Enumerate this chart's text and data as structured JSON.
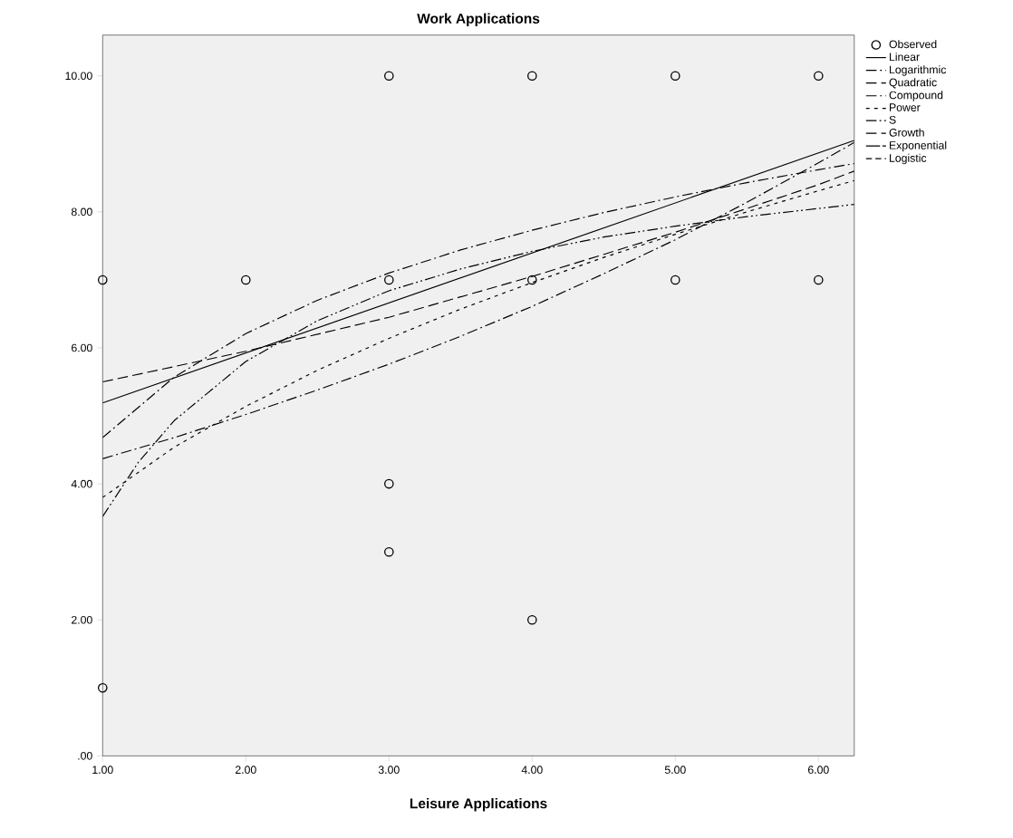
{
  "chart_data": {
    "type": "scatter",
    "title": "Work Applications",
    "xlabel": "Leisure Applications",
    "xlim": [
      1,
      6.25
    ],
    "ylim": [
      0,
      10.6
    ],
    "xticks": [
      {
        "value": 1,
        "label": "1.00"
      },
      {
        "value": 2,
        "label": "2.00"
      },
      {
        "value": 3,
        "label": "3.00"
      },
      {
        "value": 4,
        "label": "4.00"
      },
      {
        "value": 5,
        "label": "5.00"
      },
      {
        "value": 6,
        "label": "6.00"
      }
    ],
    "yticks": [
      {
        "value": 0,
        "label": ".00"
      },
      {
        "value": 2,
        "label": "2.00"
      },
      {
        "value": 4,
        "label": "4.00"
      },
      {
        "value": 6,
        "label": "6.00"
      },
      {
        "value": 8,
        "label": "8.00"
      },
      {
        "value": 10,
        "label": "10.00"
      }
    ],
    "grid": false,
    "legend": "right",
    "series": [
      {
        "name": "Observed",
        "type": "scatter",
        "marker": "circle",
        "color": "#000000",
        "x": [
          1,
          1,
          2,
          3,
          3,
          3,
          3,
          4,
          4,
          4,
          5,
          5,
          6,
          6
        ],
        "values": [
          7,
          1,
          7,
          10,
          7,
          4,
          3,
          10,
          7,
          2,
          10,
          7,
          10,
          7
        ]
      },
      {
        "name": "Linear",
        "type": "line",
        "line_style": "solid",
        "color": "#000000",
        "x": [
          1,
          6.25
        ],
        "values": [
          5.19,
          9.05
        ]
      },
      {
        "name": "Logarithmic",
        "type": "line",
        "line_style": "dashdotted",
        "color": "#000000",
        "x": [
          1,
          1.5,
          2,
          2.5,
          3,
          3.5,
          4,
          4.5,
          5,
          5.5,
          6,
          6.25
        ],
        "values": [
          4.68,
          5.57,
          6.21,
          6.7,
          7.1,
          7.44,
          7.73,
          7.99,
          8.22,
          8.43,
          8.62,
          8.71
        ]
      },
      {
        "name": "Quadratic",
        "type": "line",
        "line_style": "dashed",
        "color": "#000000",
        "x": [
          1,
          2,
          3,
          4,
          5,
          6,
          6.25
        ],
        "values": [
          5.5,
          5.95,
          6.45,
          7.05,
          7.7,
          8.4,
          8.6
        ]
      },
      {
        "name": "Compound",
        "type": "line",
        "line_style": "dashdotted",
        "color": "#000000",
        "x": [
          1,
          1.5,
          2,
          2.5,
          3,
          3.5,
          4,
          4.5,
          5,
          5.5,
          6,
          6.25
        ],
        "values": [
          4.37,
          4.68,
          5.02,
          5.38,
          5.76,
          6.17,
          6.61,
          7.09,
          7.59,
          8.14,
          8.72,
          9.02
        ]
      },
      {
        "name": "Power",
        "type": "line",
        "line_style": "dotted",
        "color": "#000000",
        "x": [
          1,
          1.5,
          2,
          2.5,
          3,
          3.5,
          4,
          4.5,
          5,
          5.5,
          6,
          6.25
        ],
        "values": [
          3.8,
          4.54,
          5.14,
          5.67,
          6.14,
          6.57,
          6.96,
          7.33,
          7.67,
          8.0,
          8.31,
          8.46
        ]
      },
      {
        "name": "S",
        "type": "line",
        "line_style": "dashdotdotted",
        "color": "#000000",
        "x": [
          1,
          1.25,
          1.5,
          2,
          2.5,
          3,
          3.5,
          4,
          4.5,
          5,
          5.5,
          6,
          6.25
        ],
        "values": [
          3.52,
          4.32,
          4.93,
          5.8,
          6.4,
          6.84,
          7.16,
          7.42,
          7.63,
          7.79,
          7.93,
          8.05,
          8.11
        ]
      },
      {
        "name": "Growth",
        "type": "line",
        "line_style": "dashed",
        "color": "#000000"
      },
      {
        "name": "Exponential",
        "type": "line",
        "line_style": "loosely dashed",
        "color": "#000000"
      },
      {
        "name": "Logistic",
        "type": "line",
        "line_style": "densely dashed",
        "color": "#000000"
      }
    ]
  }
}
